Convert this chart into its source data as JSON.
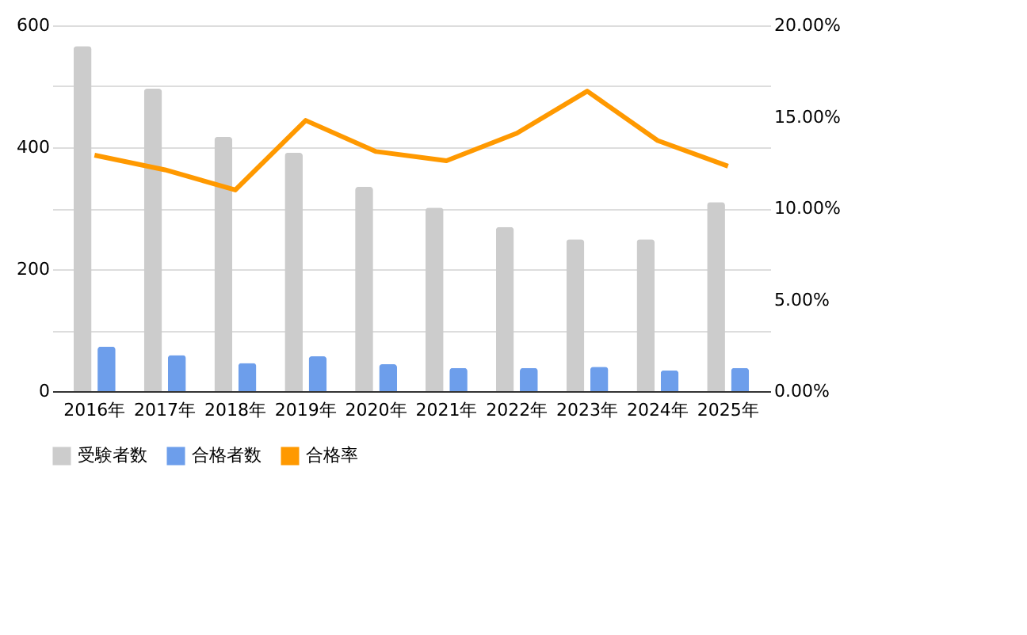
{
  "chart_data": {
    "type": "bar",
    "categories": [
      "2016年",
      "2017年",
      "2018年",
      "2019年",
      "2020年",
      "2021年",
      "2022年",
      "2023年",
      "2024年",
      "2025年"
    ],
    "series": [
      {
        "name": "受験者数",
        "color": "#cccccc",
        "values": [
          566,
          496,
          417,
          391,
          335,
          301,
          269,
          249,
          249,
          310
        ]
      },
      {
        "name": "合格者数",
        "color": "#6d9eeb",
        "values": [
          73,
          59,
          46,
          57,
          44,
          38,
          38,
          40,
          34,
          38
        ]
      },
      {
        "name": "合格率",
        "color": "#ff9900",
        "type": "line",
        "axis": "y2",
        "values": [
          12.9,
          12.1,
          11.0,
          14.8,
          13.1,
          12.6,
          14.1,
          16.4,
          13.7,
          12.3
        ]
      }
    ],
    "ylim": [
      0,
      600
    ],
    "yticks": [
      0,
      {
        "value": 100,
        "label": null
      },
      200,
      {
        "value": 300,
        "label": null
      },
      400,
      {
        "value": 500,
        "label": null
      },
      600
    ],
    "y2lim": [
      0,
      20
    ],
    "y2ticks": [
      {
        "value": 0,
        "label": "0.00%"
      },
      {
        "value": 5,
        "label": "5.00%"
      },
      {
        "value": 10,
        "label": "10.00%"
      },
      {
        "value": 15,
        "label": "15.00%"
      },
      {
        "value": 20,
        "label": "20.00%"
      }
    ],
    "grid": "y",
    "legend": "bottom",
    "marker": "none",
    "line_style": "solid"
  }
}
